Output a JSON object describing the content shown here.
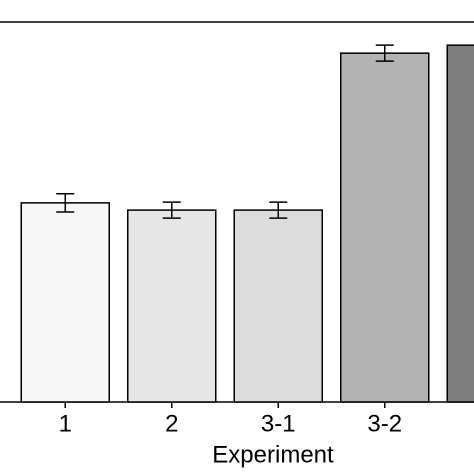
{
  "chart_data": {
    "type": "bar",
    "x_label": "Experiment",
    "categories": [
      "1",
      "2",
      "3-1",
      "3-2",
      null
    ],
    "values": [
      52.4,
      50.5,
      50.5,
      91.8,
      93.9
    ],
    "errors": [
      2.4,
      2.1,
      2.1,
      2.1,
      null
    ],
    "colors": [
      "#f7f7f7",
      "#e6e6e6",
      "#dcdcdc",
      "#b3b3b3",
      "#7f7f7f"
    ],
    "ylim": [
      0,
      100
    ]
  }
}
